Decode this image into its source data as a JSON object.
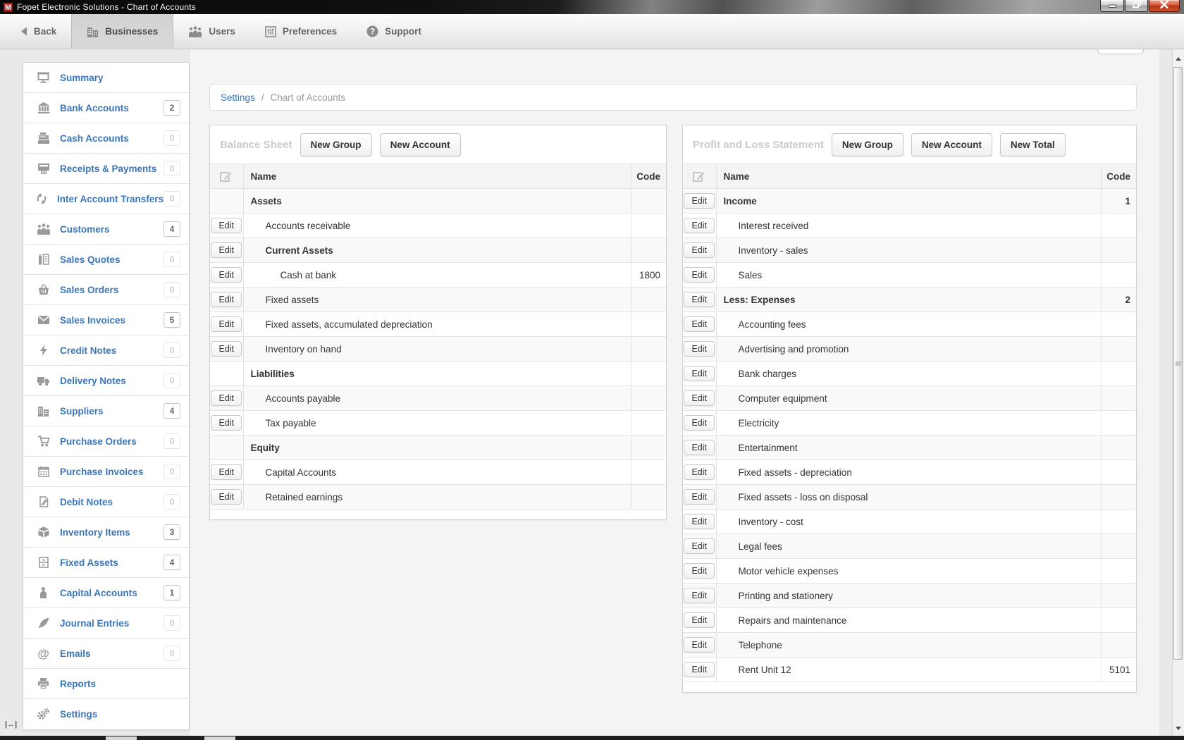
{
  "window": {
    "title": "Fopet Electronic Solutions - Chart of Accounts",
    "app_icon_letter": "M"
  },
  "ui_colors": {
    "accent_blue": "#3a76b8",
    "titlebar_red_icon": "#b52b1c",
    "close_button_red": "#b03317",
    "panel_title_gray": "#cbcbcb"
  },
  "toolbar": {
    "items": [
      {
        "label": "Back",
        "icon": "back-arrow",
        "active": false
      },
      {
        "label": "Businesses",
        "icon": "buildings",
        "active": true
      },
      {
        "label": "Users",
        "icon": "people",
        "active": false
      },
      {
        "label": "Preferences",
        "icon": "sliders",
        "active": false
      },
      {
        "label": "Support",
        "icon": "question-circle",
        "active": false
      }
    ]
  },
  "sidebar": {
    "items": [
      {
        "slug": "summary",
        "label": "Summary",
        "icon": "screen"
      },
      {
        "slug": "bank-accounts",
        "label": "Bank Accounts",
        "icon": "bank",
        "count": "2",
        "is_zero": false
      },
      {
        "slug": "cash-accounts",
        "label": "Cash Accounts",
        "icon": "cash-register",
        "count": "0",
        "is_zero": true
      },
      {
        "slug": "receipts-payments",
        "label": "Receipts & Payments",
        "icon": "receipt",
        "count": "0",
        "is_zero": true
      },
      {
        "slug": "inter-account-transfers",
        "label": "Inter Account Transfers",
        "icon": "transfer-arrows",
        "count": "0",
        "is_zero": true
      },
      {
        "slug": "customers",
        "label": "Customers",
        "icon": "people",
        "count": "4",
        "is_zero": false
      },
      {
        "slug": "sales-quotes",
        "label": "Sales Quotes",
        "icon": "quote-document",
        "count": "0",
        "is_zero": true
      },
      {
        "slug": "sales-orders",
        "label": "Sales Orders",
        "icon": "basket",
        "count": "0",
        "is_zero": true
      },
      {
        "slug": "sales-invoices",
        "label": "Sales Invoices",
        "icon": "envelope",
        "count": "5",
        "is_zero": false
      },
      {
        "slug": "credit-notes",
        "label": "Credit Notes",
        "icon": "lightning",
        "count": "0",
        "is_zero": true
      },
      {
        "slug": "delivery-notes",
        "label": "Delivery Notes",
        "icon": "truck",
        "count": "0",
        "is_zero": true
      },
      {
        "slug": "suppliers",
        "label": "Suppliers",
        "icon": "buildings",
        "count": "4",
        "is_zero": false
      },
      {
        "slug": "purchase-orders",
        "label": "Purchase Orders",
        "icon": "cart",
        "count": "0",
        "is_zero": true
      },
      {
        "slug": "purchase-invoices",
        "label": "Purchase Invoices",
        "icon": "calendar",
        "count": "0",
        "is_zero": true
      },
      {
        "slug": "debit-notes",
        "label": "Debit Notes",
        "icon": "document-pencil",
        "count": "0",
        "is_zero": true
      },
      {
        "slug": "inventory-items",
        "label": "Inventory Items",
        "icon": "cube",
        "count": "3",
        "is_zero": false
      },
      {
        "slug": "fixed-assets",
        "label": "Fixed Assets",
        "icon": "cabinet",
        "count": "4",
        "is_zero": false
      },
      {
        "slug": "capital-accounts",
        "label": "Capital Accounts",
        "icon": "person",
        "count": "1",
        "is_zero": false
      },
      {
        "slug": "journal-entries",
        "label": "Journal Entries",
        "icon": "quill",
        "count": "0",
        "is_zero": true
      },
      {
        "slug": "emails",
        "label": "Emails",
        "icon": "at-sign",
        "count": "0",
        "is_zero": true
      },
      {
        "slug": "reports",
        "label": "Reports",
        "icon": "printer"
      },
      {
        "slug": "settings",
        "label": "Settings",
        "icon": "gears"
      }
    ]
  },
  "breadcrumb": {
    "link": "Settings",
    "separator": "/",
    "current": "Chart of Accounts"
  },
  "labels": {
    "edit": "Edit"
  },
  "balance_sheet": {
    "title": "Balance Sheet",
    "buttons": [
      "New Group",
      "New Account"
    ],
    "columns": {
      "name": "Name",
      "code": "Code"
    },
    "rows": [
      {
        "name": "Assets",
        "level": 0,
        "bold": true,
        "edit": false
      },
      {
        "name": "Accounts receivable",
        "level": 1,
        "edit": true
      },
      {
        "name": "Current Assets",
        "level": 1,
        "bold": true,
        "edit": true
      },
      {
        "name": "Cash at bank",
        "level": 2,
        "edit": true,
        "code": "1800"
      },
      {
        "name": "Fixed assets",
        "level": 1,
        "edit": true
      },
      {
        "name": "Fixed assets, accumulated depreciation",
        "level": 1,
        "edit": true
      },
      {
        "name": "Inventory on hand",
        "level": 1,
        "edit": true
      },
      {
        "name": "Liabilities",
        "level": 0,
        "bold": true,
        "edit": false
      },
      {
        "name": "Accounts payable",
        "level": 1,
        "edit": true
      },
      {
        "name": "Tax payable",
        "level": 1,
        "edit": true
      },
      {
        "name": "Equity",
        "level": 0,
        "bold": true,
        "edit": false
      },
      {
        "name": "Capital Accounts",
        "level": 1,
        "edit": true
      },
      {
        "name": "Retained earnings",
        "level": 1,
        "edit": true
      }
    ]
  },
  "profit_loss": {
    "title": "Profit and Loss Statement",
    "buttons": [
      "New Group",
      "New Account",
      "New Total"
    ],
    "columns": {
      "name": "Name",
      "code": "Code"
    },
    "rows": [
      {
        "name": "Income",
        "level": 0,
        "bold": true,
        "edit": true,
        "code": "1"
      },
      {
        "name": "Interest received",
        "level": 1,
        "edit": true
      },
      {
        "name": "Inventory - sales",
        "level": 1,
        "edit": true
      },
      {
        "name": "Sales",
        "level": 1,
        "edit": true
      },
      {
        "name": "Less: Expenses",
        "level": 0,
        "bold": true,
        "edit": true,
        "code": "2"
      },
      {
        "name": "Accounting fees",
        "level": 1,
        "edit": true
      },
      {
        "name": "Advertising and promotion",
        "level": 1,
        "edit": true
      },
      {
        "name": "Bank charges",
        "level": 1,
        "edit": true
      },
      {
        "name": "Computer equipment",
        "level": 1,
        "edit": true
      },
      {
        "name": "Electricity",
        "level": 1,
        "edit": true
      },
      {
        "name": "Entertainment",
        "level": 1,
        "edit": true
      },
      {
        "name": "Fixed assets - depreciation",
        "level": 1,
        "edit": true
      },
      {
        "name": "Fixed assets - loss on disposal",
        "level": 1,
        "edit": true
      },
      {
        "name": "Inventory - cost",
        "level": 1,
        "edit": true
      },
      {
        "name": "Legal fees",
        "level": 1,
        "edit": true
      },
      {
        "name": "Motor vehicle expenses",
        "level": 1,
        "edit": true
      },
      {
        "name": "Printing and stationery",
        "level": 1,
        "edit": true
      },
      {
        "name": "Repairs and maintenance",
        "level": 1,
        "edit": true
      },
      {
        "name": "Telephone",
        "level": 1,
        "edit": true
      },
      {
        "name": "Rent Unit 12",
        "level": 1,
        "edit": true,
        "code": "5101"
      }
    ]
  }
}
